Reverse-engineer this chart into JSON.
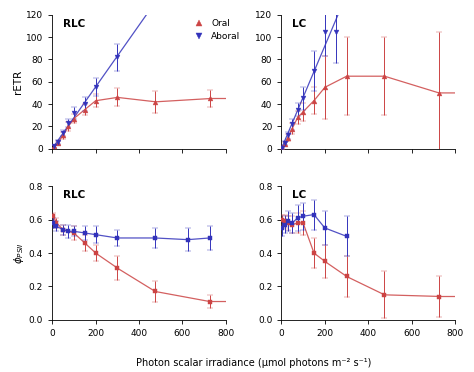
{
  "oral_color": "#cc4444",
  "aboral_color": "#3333bb",
  "legend_oral": "Oral",
  "legend_aboral": "Aboral",
  "rlc_retr_oral_x": [
    10,
    25,
    50,
    75,
    100,
    150,
    200,
    300,
    475,
    725
  ],
  "rlc_retr_oral_y": [
    2,
    5,
    12,
    20,
    27,
    35,
    43,
    46,
    42,
    45
  ],
  "rlc_retr_oral_yerr": [
    1,
    2,
    3,
    4,
    4,
    5,
    6,
    8,
    10,
    8
  ],
  "rlc_retr_aboral_x": [
    10,
    25,
    50,
    75,
    100,
    150,
    200,
    300
  ],
  "rlc_retr_aboral_y": [
    2,
    6,
    14,
    23,
    32,
    40,
    55,
    82
  ],
  "rlc_retr_aboral_yerr": [
    1,
    2,
    3,
    4,
    5,
    6,
    8,
    12
  ],
  "lc_retr_oral_x": [
    5,
    15,
    30,
    50,
    75,
    100,
    150,
    200,
    300,
    475,
    725
  ],
  "lc_retr_oral_y": [
    1,
    4,
    10,
    18,
    28,
    33,
    43,
    55,
    65,
    65,
    50
  ],
  "lc_retr_oral_yerr": [
    1,
    2,
    3,
    5,
    6,
    8,
    12,
    28,
    35,
    35,
    55
  ],
  "lc_retr_aboral_x": [
    5,
    15,
    30,
    50,
    75,
    100,
    150,
    200,
    250
  ],
  "lc_retr_aboral_y": [
    1,
    5,
    12,
    22,
    35,
    45,
    70,
    105,
    105
  ],
  "lc_retr_aboral_yerr": [
    1,
    2,
    3,
    5,
    6,
    10,
    18,
    22,
    28
  ],
  "rlc_phi_oral_x": [
    5,
    20,
    50,
    100,
    150,
    200,
    300,
    475,
    725
  ],
  "rlc_phi_oral_y": [
    0.62,
    0.58,
    0.54,
    0.52,
    0.46,
    0.4,
    0.31,
    0.17,
    0.11
  ],
  "rlc_phi_oral_yerr": [
    0.02,
    0.03,
    0.03,
    0.04,
    0.05,
    0.05,
    0.07,
    0.06,
    0.04
  ],
  "rlc_phi_aboral_x": [
    5,
    20,
    50,
    75,
    100,
    150,
    200,
    300,
    475,
    625,
    725
  ],
  "rlc_phi_aboral_y": [
    0.58,
    0.56,
    0.54,
    0.53,
    0.53,
    0.52,
    0.51,
    0.49,
    0.49,
    0.48,
    0.49
  ],
  "rlc_phi_aboral_yerr": [
    0.03,
    0.03,
    0.03,
    0.04,
    0.03,
    0.04,
    0.05,
    0.05,
    0.06,
    0.07,
    0.07
  ],
  "lc_phi_oral_x": [
    5,
    15,
    30,
    50,
    75,
    100,
    150,
    200,
    300,
    475,
    725
  ],
  "lc_phi_oral_y": [
    0.6,
    0.59,
    0.58,
    0.57,
    0.58,
    0.58,
    0.4,
    0.35,
    0.26,
    0.15,
    0.14
  ],
  "lc_phi_oral_yerr": [
    0.03,
    0.04,
    0.04,
    0.05,
    0.06,
    0.07,
    0.09,
    0.1,
    0.12,
    0.14,
    0.12
  ],
  "lc_phi_aboral_x": [
    5,
    15,
    30,
    50,
    75,
    100,
    150,
    200,
    300
  ],
  "lc_phi_aboral_y": [
    0.55,
    0.57,
    0.59,
    0.58,
    0.61,
    0.62,
    0.63,
    0.55,
    0.5
  ],
  "lc_phi_aboral_yerr": [
    0.05,
    0.05,
    0.06,
    0.06,
    0.08,
    0.08,
    0.09,
    0.1,
    0.12
  ],
  "retr_ylim": [
    0,
    120
  ],
  "retr_yticks": [
    0,
    20,
    40,
    60,
    80,
    100,
    120
  ],
  "phi_ylim": [
    0.0,
    0.8
  ],
  "phi_yticks": [
    0.0,
    0.2,
    0.4,
    0.6,
    0.8
  ],
  "xlim": [
    0,
    800
  ],
  "xticks": [
    0,
    200,
    400,
    600,
    800
  ],
  "xlabel": "Photon scalar irradiance (μmol photons m⁻² s⁻¹)",
  "ylabel_top": "rETR",
  "ylabel_bottom_label": "$\\phi_{PSII}$"
}
